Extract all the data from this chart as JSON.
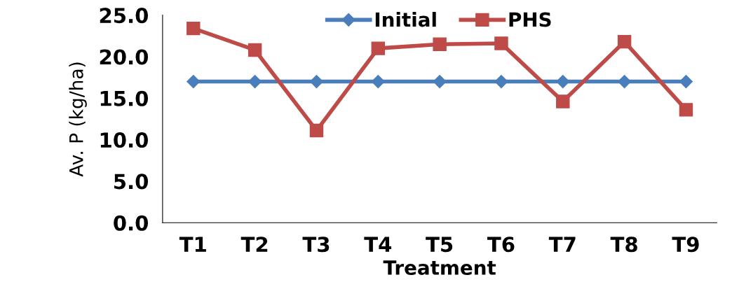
{
  "chart_data": {
    "type": "line",
    "xlabel": "Treatment",
    "ylabel": "Av. P (kg/ha)",
    "categories": [
      "T1",
      "T2",
      "T3",
      "T4",
      "T5",
      "T6",
      "T7",
      "T8",
      "T9"
    ],
    "series": [
      {
        "name": "Initial",
        "color": "#4a7ebb",
        "marker": "diamond",
        "values": [
          17.0,
          17.0,
          17.0,
          17.0,
          17.0,
          17.0,
          17.0,
          17.0,
          17.0
        ]
      },
      {
        "name": "PHS",
        "color": "#be4b48",
        "marker": "square",
        "values": [
          23.4,
          20.8,
          11.1,
          21.0,
          21.5,
          21.6,
          14.6,
          21.8,
          13.6
        ]
      }
    ],
    "ylim": [
      0,
      25
    ],
    "yticks": [
      {
        "value": 0,
        "label": "0.0"
      },
      {
        "value": 5,
        "label": "5.0"
      },
      {
        "value": 10,
        "label": "10.0"
      },
      {
        "value": 15,
        "label": "15.0"
      },
      {
        "value": 20,
        "label": "20.0"
      },
      {
        "value": 25,
        "label": "25.0"
      }
    ],
    "grid": false,
    "legend": "top"
  }
}
